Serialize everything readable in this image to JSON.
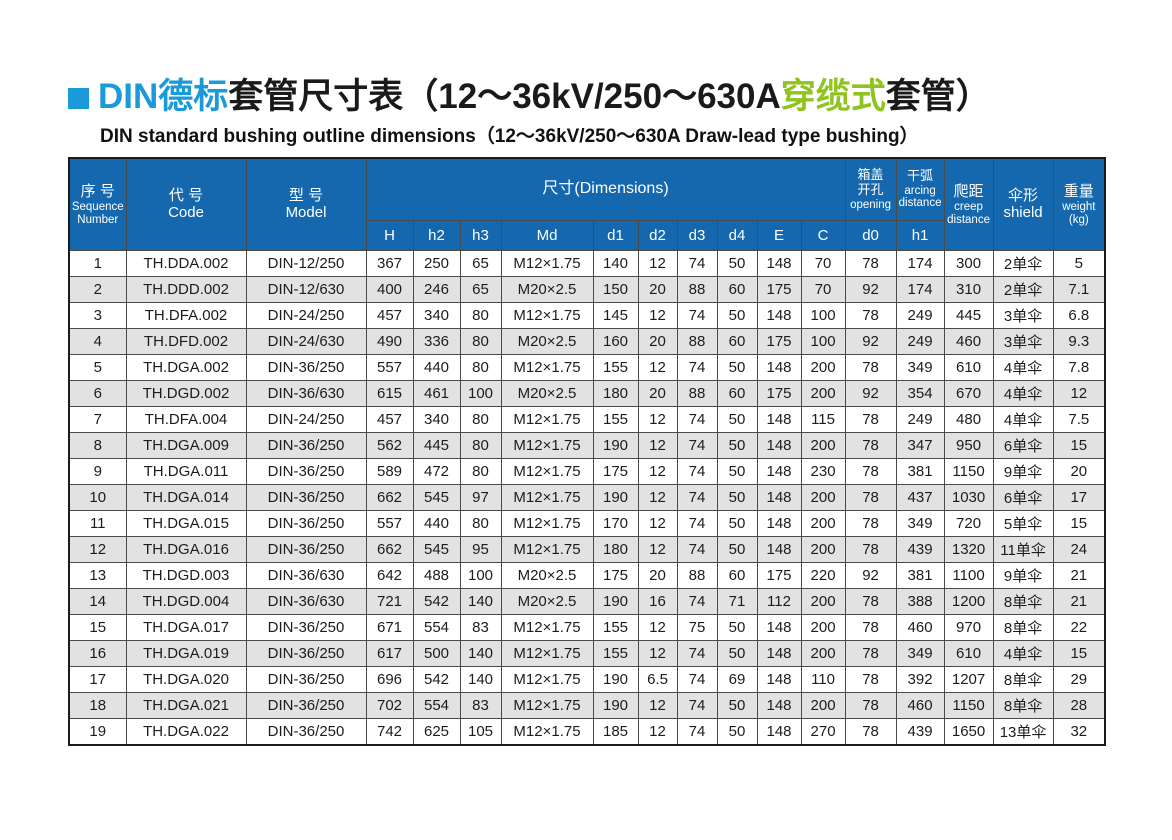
{
  "page": {
    "title": {
      "blue_part": "DIN德标",
      "black_part1": "套管尺寸表（12～36kV/250～630A",
      "green_part": "穿缆式",
      "black_part2": "套管）",
      "subtitle": "DIN standard bushing outline dimensions（12～36kV/250～630A Draw-lead type bushing）"
    },
    "colors": {
      "title_blue": "#1a9ad8",
      "highlight_green": "#8fc31f",
      "header_blue": "#1568ae",
      "stripe_gray": "#e2e2e2"
    }
  },
  "table": {
    "header": {
      "seq_zh": "序 号",
      "seq_en": "Sequence\nNumber",
      "code_zh": "代 号",
      "code_en": "Code",
      "model_zh": "型 号",
      "model_en": "Model",
      "dimensions": "尺寸(Dimensions)",
      "opening_zh": "箱盖\n开孔",
      "opening_en": "opening",
      "arcing_zh": "干弧",
      "arcing_en": "arcing\ndistance",
      "creep_zh": "爬距",
      "creep_en": "creep\ndistance",
      "shield_zh": "伞形",
      "shield_en": "shield",
      "weight_zh": "重量",
      "weight_en": "weight\n(kg)"
    },
    "subheaders": [
      "H",
      "h2",
      "h3",
      "Md",
      "d1",
      "d2",
      "d3",
      "d4",
      "E",
      "C",
      "d0",
      "h1"
    ],
    "rows": [
      [
        "1",
        "TH.DDA.002",
        "DIN-12/250",
        "367",
        "250",
        "65",
        "M12×1.75",
        "140",
        "12",
        "74",
        "50",
        "148",
        "70",
        "78",
        "174",
        "300",
        "2单伞",
        "5"
      ],
      [
        "2",
        "TH.DDD.002",
        "DIN-12/630",
        "400",
        "246",
        "65",
        "M20×2.5",
        "150",
        "20",
        "88",
        "60",
        "175",
        "70",
        "92",
        "174",
        "310",
        "2单伞",
        "7.1"
      ],
      [
        "3",
        "TH.DFA.002",
        "DIN-24/250",
        "457",
        "340",
        "80",
        "M12×1.75",
        "145",
        "12",
        "74",
        "50",
        "148",
        "100",
        "78",
        "249",
        "445",
        "3单伞",
        "6.8"
      ],
      [
        "4",
        "TH.DFD.002",
        "DIN-24/630",
        "490",
        "336",
        "80",
        "M20×2.5",
        "160",
        "20",
        "88",
        "60",
        "175",
        "100",
        "92",
        "249",
        "460",
        "3单伞",
        "9.3"
      ],
      [
        "5",
        "TH.DGA.002",
        "DIN-36/250",
        "557",
        "440",
        "80",
        "M12×1.75",
        "155",
        "12",
        "74",
        "50",
        "148",
        "200",
        "78",
        "349",
        "610",
        "4单伞",
        "7.8"
      ],
      [
        "6",
        "TH.DGD.002",
        "DIN-36/630",
        "615",
        "461",
        "100",
        "M20×2.5",
        "180",
        "20",
        "88",
        "60",
        "175",
        "200",
        "92",
        "354",
        "670",
        "4单伞",
        "12"
      ],
      [
        "7",
        "TH.DFA.004",
        "DIN-24/250",
        "457",
        "340",
        "80",
        "M12×1.75",
        "155",
        "12",
        "74",
        "50",
        "148",
        "115",
        "78",
        "249",
        "480",
        "4单伞",
        "7.5"
      ],
      [
        "8",
        "TH.DGA.009",
        "DIN-36/250",
        "562",
        "445",
        "80",
        "M12×1.75",
        "190",
        "12",
        "74",
        "50",
        "148",
        "200",
        "78",
        "347",
        "950",
        "6单伞",
        "15"
      ],
      [
        "9",
        "TH.DGA.011",
        "DIN-36/250",
        "589",
        "472",
        "80",
        "M12×1.75",
        "175",
        "12",
        "74",
        "50",
        "148",
        "230",
        "78",
        "381",
        "1150",
        "9单伞",
        "20"
      ],
      [
        "10",
        "TH.DGA.014",
        "DIN-36/250",
        "662",
        "545",
        "97",
        "M12×1.75",
        "190",
        "12",
        "74",
        "50",
        "148",
        "200",
        "78",
        "437",
        "1030",
        "6单伞",
        "17"
      ],
      [
        "11",
        "TH.DGA.015",
        "DIN-36/250",
        "557",
        "440",
        "80",
        "M12×1.75",
        "170",
        "12",
        "74",
        "50",
        "148",
        "200",
        "78",
        "349",
        "720",
        "5单伞",
        "15"
      ],
      [
        "12",
        "TH.DGA.016",
        "DIN-36/250",
        "662",
        "545",
        "95",
        "M12×1.75",
        "180",
        "12",
        "74",
        "50",
        "148",
        "200",
        "78",
        "439",
        "1320",
        "11单伞",
        "24"
      ],
      [
        "13",
        "TH.DGD.003",
        "DIN-36/630",
        "642",
        "488",
        "100",
        "M20×2.5",
        "175",
        "20",
        "88",
        "60",
        "175",
        "220",
        "92",
        "381",
        "1100",
        "9单伞",
        "21"
      ],
      [
        "14",
        "TH.DGD.004",
        "DIN-36/630",
        "721",
        "542",
        "140",
        "M20×2.5",
        "190",
        "16",
        "74",
        "71",
        "112",
        "200",
        "78",
        "388",
        "1200",
        "8单伞",
        "21"
      ],
      [
        "15",
        "TH.DGA.017",
        "DIN-36/250",
        "671",
        "554",
        "83",
        "M12×1.75",
        "155",
        "12",
        "75",
        "50",
        "148",
        "200",
        "78",
        "460",
        "970",
        "8单伞",
        "22"
      ],
      [
        "16",
        "TH.DGA.019",
        "DIN-36/250",
        "617",
        "500",
        "140",
        "M12×1.75",
        "155",
        "12",
        "74",
        "50",
        "148",
        "200",
        "78",
        "349",
        "610",
        "4单伞",
        "15"
      ],
      [
        "17",
        "TH.DGA.020",
        "DIN-36/250",
        "696",
        "542",
        "140",
        "M12×1.75",
        "190",
        "6.5",
        "74",
        "69",
        "148",
        "110",
        "78",
        "392",
        "1207",
        "8单伞",
        "29"
      ],
      [
        "18",
        "TH.DGA.021",
        "DIN-36/250",
        "702",
        "554",
        "83",
        "M12×1.75",
        "190",
        "12",
        "74",
        "50",
        "148",
        "200",
        "78",
        "460",
        "1150",
        "8单伞",
        "28"
      ],
      [
        "19",
        "TH.DGA.022",
        "DIN-36/250",
        "742",
        "625",
        "105",
        "M12×1.75",
        "185",
        "12",
        "74",
        "50",
        "148",
        "270",
        "78",
        "439",
        "1650",
        "13单伞",
        "32"
      ]
    ]
  }
}
